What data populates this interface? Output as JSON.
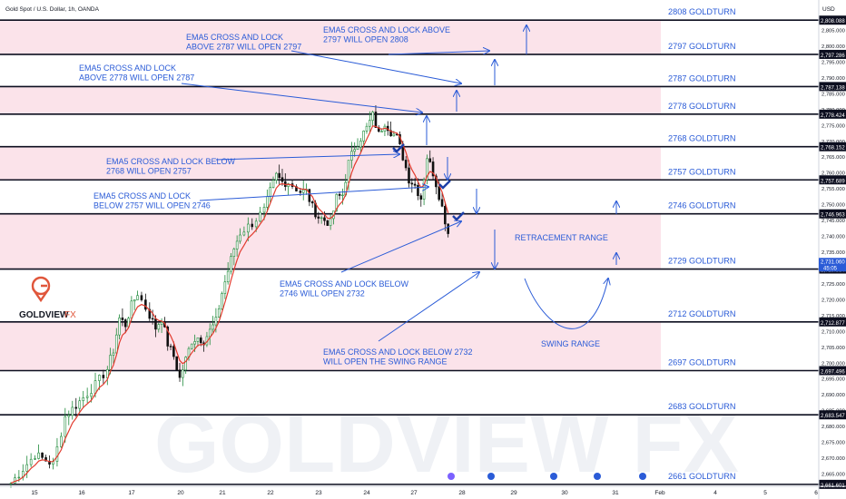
{
  "header": {
    "instrument": "Gold Spot / U.S. Dollar, 1h, OANDA"
  },
  "brand": {
    "name_main": "GOLDVIEW",
    "name_suffix": "FX",
    "watermark": "GOLDVIEW FX"
  },
  "price_axis": {
    "currency": "USD",
    "ticks": [
      "2,805.000",
      "2,800.000",
      "2,795.000",
      "2,790.000",
      "2,785.000",
      "2,780.000",
      "2,775.000",
      "2,770.000",
      "2,765.000",
      "2,760.000",
      "2,755.000",
      "2,750.000",
      "2,745.000",
      "2,740.000",
      "2,735.000",
      "2,730.000",
      "2,725.000",
      "2,720.000",
      "2,715.000",
      "2,710.000",
      "2,705.000",
      "2,700.000",
      "2,695.000",
      "2,690.000",
      "2,685.000",
      "2,680.000",
      "2,675.000",
      "2,670.000",
      "2,665.000"
    ],
    "tick_values": [
      2805,
      2800,
      2795,
      2790,
      2785,
      2780,
      2775,
      2770,
      2765,
      2760,
      2755,
      2750,
      2745,
      2740,
      2735,
      2730,
      2725,
      2720,
      2715,
      2710,
      2705,
      2700,
      2695,
      2690,
      2685,
      2680,
      2675,
      2670,
      2665
    ],
    "current_price": "2,731.060",
    "countdown": "45:05"
  },
  "time_axis": {
    "labels": [
      "15",
      "16",
      "17",
      "20",
      "21",
      "22",
      "23",
      "24",
      "27",
      "28",
      "29",
      "30",
      "31",
      "Feb",
      "4",
      "5",
      "6"
    ]
  },
  "chart_data": {
    "type": "candlestick",
    "title": "Gold Spot / U.S. Dollar, 1h, OANDA",
    "ylim": [
      2658,
      2812
    ],
    "y_scale": "linear",
    "grid": false,
    "legend": "none",
    "x_categories": [
      "15",
      "16",
      "17",
      "20",
      "21",
      "22",
      "23",
      "24",
      "27",
      "28",
      "29",
      "30",
      "31",
      "Feb",
      "4",
      "5",
      "6"
    ],
    "goldturn_levels": [
      {
        "value": 2808.088,
        "label": "2808 GOLDTURN",
        "price_tag": "2,808.088"
      },
      {
        "value": 2797.286,
        "label": "2797 GOLDTURN",
        "price_tag": "2,797.286"
      },
      {
        "value": 2787.138,
        "label": "2787 GOLDTURN",
        "price_tag": "2,787.138"
      },
      {
        "value": 2778.424,
        "label": "2778 GOLDTURN",
        "price_tag": "2,778.424"
      },
      {
        "value": 2768.152,
        "label": "2768 GOLDTURN",
        "price_tag": "2,768.152"
      },
      {
        "value": 2757.689,
        "label": "2757 GOLDTURN",
        "price_tag": "2,757.689"
      },
      {
        "value": 2746.963,
        "label": "2746 GOLDTURN",
        "price_tag": "2,746.963"
      },
      {
        "value": 2729.554,
        "label": "2729 GOLDTURN",
        "price_tag": "2,729.554"
      },
      {
        "value": 2712.877,
        "label": "2712 GOLDTURN",
        "price_tag": "2,712.877"
      },
      {
        "value": 2697.496,
        "label": "2697 GOLDTURN",
        "price_tag": "2,697.496"
      },
      {
        "value": 2683.547,
        "label": "2683 GOLDTURN",
        "price_tag": "2,683.547"
      },
      {
        "value": 2661.601,
        "label": "2661 GOLDTURN",
        "price_tag": "2,661.601"
      }
    ],
    "shaded_zones": [
      [
        2797.286,
        2808.088
      ],
      [
        2778.424,
        2787.138
      ],
      [
        2757.689,
        2768.152
      ],
      [
        2729.554,
        2746.963
      ],
      [
        2697.496,
        2712.877
      ]
    ],
    "annotations": [
      {
        "text": "EMA5 CROSS AND LOCK ABOVE\n2797 WILL OPEN 2808"
      },
      {
        "text": "EMA5 CROSS AND LOCK\nABOVE 2787 WILL OPEN 2797"
      },
      {
        "text": "EMA5 CROSS AND LOCK\nABOVE 2778 WILL OPEN 2787"
      },
      {
        "text": "EMA5 CROSS AND LOCK BELOW\n2768 WILL OPEN 2757"
      },
      {
        "text": "EMA5 CROSS AND LOCK\nBELOW 2757 WILL OPEN 2746"
      },
      {
        "text": "EMA5 CROSS AND LOCK BELOW\n2746 WILL OPEN 2732"
      },
      {
        "text": "EMA5 CROSS AND LOCK BELOW 2732\nWILL OPEN THE SWING RANGE"
      },
      {
        "text": "RETRACEMENT RANGE"
      },
      {
        "text": "SWING RANGE"
      }
    ],
    "price_path": [
      [
        0,
        2662
      ],
      [
        4,
        2671
      ],
      [
        7,
        2668
      ],
      [
        9,
        2683
      ],
      [
        12,
        2689
      ],
      [
        14,
        2693
      ],
      [
        16,
        2698
      ],
      [
        17,
        2704
      ],
      [
        18,
        2714
      ],
      [
        19,
        2712
      ],
      [
        20,
        2718
      ],
      [
        21,
        2722
      ],
      [
        23,
        2715
      ],
      [
        24,
        2711
      ],
      [
        25,
        2714
      ],
      [
        26,
        2706
      ],
      [
        27,
        2702
      ],
      [
        28,
        2695
      ],
      [
        29,
        2701
      ],
      [
        30,
        2707
      ],
      [
        31,
        2708
      ],
      [
        32,
        2707
      ],
      [
        33,
        2710
      ],
      [
        34,
        2713
      ],
      [
        35,
        2722
      ],
      [
        36,
        2729
      ],
      [
        37,
        2736
      ],
      [
        38,
        2741
      ],
      [
        40,
        2744
      ],
      [
        42,
        2748
      ],
      [
        43,
        2754
      ],
      [
        44,
        2759
      ],
      [
        45,
        2757
      ],
      [
        46,
        2757
      ],
      [
        48,
        2754
      ],
      [
        49,
        2754
      ],
      [
        50,
        2749
      ],
      [
        51,
        2746
      ],
      [
        52,
        2745
      ],
      [
        53,
        2744
      ],
      [
        54,
        2752
      ],
      [
        55,
        2753
      ],
      [
        56,
        2763
      ],
      [
        57,
        2768
      ],
      [
        58,
        2771
      ],
      [
        59,
        2774
      ],
      [
        60,
        2778
      ],
      [
        61,
        2772
      ],
      [
        62,
        2776
      ],
      [
        63,
        2773
      ],
      [
        64,
        2771
      ],
      [
        65,
        2765
      ],
      [
        66,
        2758
      ],
      [
        67,
        2756
      ],
      [
        68,
        2752
      ],
      [
        69,
        2765
      ],
      [
        70,
        2760
      ],
      [
        71,
        2753
      ],
      [
        72,
        2745
      ],
      [
        73,
        2737
      ]
    ],
    "projections": [
      {
        "from": 2729.554,
        "to": 2746.963,
        "direction": "up"
      },
      {
        "from": 2746.963,
        "to": 2729.554,
        "direction": "down"
      },
      {
        "from": 2729.554,
        "to": 2712.877,
        "direction": "swing"
      }
    ]
  }
}
